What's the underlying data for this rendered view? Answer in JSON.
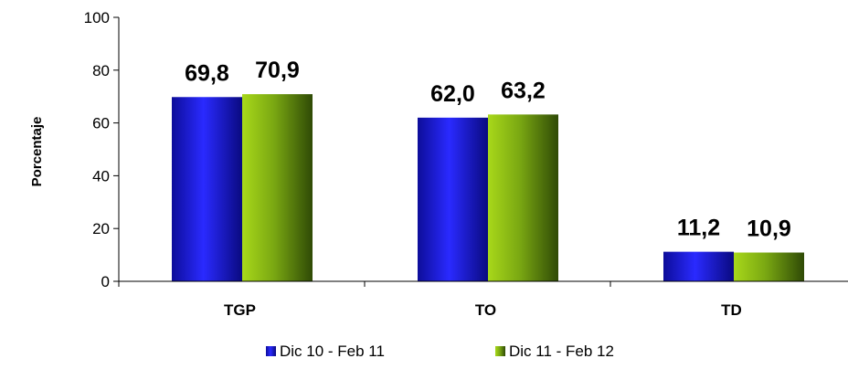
{
  "chart_data": {
    "type": "bar",
    "categories": [
      "TGP",
      "TO",
      "TD"
    ],
    "series": [
      {
        "name": "Dic 10 - Feb 11",
        "values": [
          69.8,
          62.0,
          11.2
        ],
        "labels": [
          "69,8",
          "62,0",
          "11,2"
        ],
        "color": "#1a1ae6"
      },
      {
        "name": "Dic 11 - Feb 12",
        "values": [
          70.9,
          63.2,
          10.9
        ],
        "labels": [
          "70,9",
          "63,2",
          "10,9"
        ],
        "color": "#8fbf14"
      }
    ],
    "ylabel": "Porcentaje",
    "xlabel": "",
    "ylim": [
      0,
      100
    ],
    "yticks": [
      0,
      20,
      40,
      60,
      80,
      100
    ],
    "ytick_labels": [
      "0",
      "20",
      "40",
      "60",
      "80",
      "100"
    ],
    "grid": false,
    "legend": "bottom-center"
  }
}
